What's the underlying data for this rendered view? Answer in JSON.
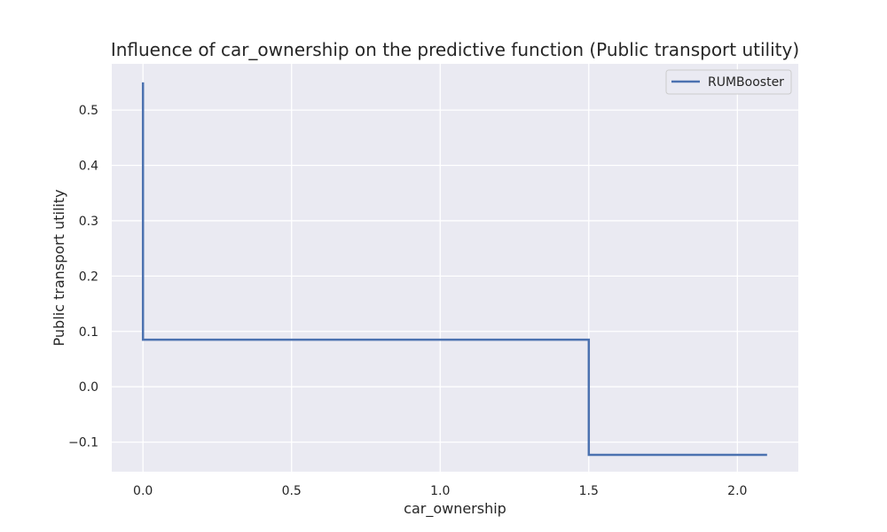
{
  "chart_data": {
    "type": "line",
    "step": true,
    "title": "Influence of car_ownership on the predictive function (Public transport utility)",
    "xlabel": "car_ownership",
    "ylabel": "Public transport utility",
    "xlim": [
      -0.105,
      2.205
    ],
    "ylim": [
      -0.1535,
      0.5835
    ],
    "xticks": [
      0.0,
      0.5,
      1.0,
      1.5,
      2.0
    ],
    "xtick_labels": [
      "0.0",
      "0.5",
      "1.0",
      "1.5",
      "2.0"
    ],
    "yticks": [
      -0.1,
      0.0,
      0.1,
      0.2,
      0.3,
      0.4,
      0.5
    ],
    "ytick_labels": [
      "−0.1",
      "0.0",
      "0.1",
      "0.2",
      "0.3",
      "0.4",
      "0.5"
    ],
    "grid": true,
    "legend_position": "top-right",
    "series": [
      {
        "name": "RUMBooster",
        "color": "#4c72b0",
        "x": [
          0.0,
          0.0,
          1.5,
          1.5,
          2.1
        ],
        "y": [
          0.55,
          0.085,
          0.085,
          -0.123,
          -0.123
        ]
      }
    ],
    "background": "#eaeaf2",
    "grid_color": "#ffffff"
  }
}
